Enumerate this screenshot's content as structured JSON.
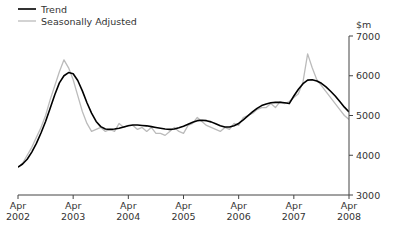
{
  "chart_data": {
    "type": "line",
    "y_label": "$m",
    "categories": [
      "Apr\n2002",
      null,
      null,
      null,
      null,
      null,
      null,
      null,
      null,
      null,
      null,
      null,
      "Apr\n2003",
      null,
      null,
      null,
      null,
      null,
      null,
      null,
      null,
      null,
      null,
      null,
      "Apr\n2004",
      null,
      null,
      null,
      null,
      null,
      null,
      null,
      null,
      null,
      null,
      null,
      "Apr\n2005",
      null,
      null,
      null,
      null,
      null,
      null,
      null,
      null,
      null,
      null,
      null,
      "Apr\n2006",
      null,
      null,
      null,
      null,
      null,
      null,
      null,
      null,
      null,
      null,
      null,
      "Apr\n2007",
      null,
      null,
      null,
      null,
      null,
      null,
      null,
      null,
      null,
      null,
      null,
      "Apr\n2008"
    ],
    "series": [
      {
        "name": "Trend",
        "color": "#000000",
        "values": [
          3700,
          3780,
          3900,
          4080,
          4300,
          4560,
          4850,
          5180,
          5520,
          5820,
          6000,
          6080,
          6050,
          5880,
          5620,
          5320,
          5060,
          4850,
          4720,
          4660,
          4650,
          4660,
          4680,
          4710,
          4740,
          4760,
          4760,
          4750,
          4740,
          4720,
          4700,
          4680,
          4660,
          4650,
          4660,
          4690,
          4730,
          4780,
          4830,
          4870,
          4880,
          4870,
          4840,
          4790,
          4740,
          4710,
          4710,
          4740,
          4800,
          4890,
          4990,
          5090,
          5180,
          5250,
          5290,
          5320,
          5330,
          5330,
          5320,
          5300,
          5490,
          5660,
          5800,
          5890,
          5900,
          5870,
          5810,
          5720,
          5610,
          5490,
          5350,
          5210,
          5090
        ]
      },
      {
        "name": "Seasonally Adjusted",
        "color": "#bbbbbb",
        "values": [
          3700,
          3800,
          4000,
          4200,
          4450,
          4700,
          5000,
          5400,
          5750,
          6100,
          6400,
          6200,
          5900,
          5500,
          5100,
          4800,
          4600,
          4650,
          4700,
          4600,
          4650,
          4600,
          4800,
          4700,
          4750,
          4750,
          4650,
          4700,
          4600,
          4700,
          4550,
          4550,
          4500,
          4600,
          4700,
          4600,
          4550,
          4750,
          4800,
          4950,
          4850,
          4750,
          4700,
          4650,
          4600,
          4700,
          4650,
          4800,
          4750,
          4950,
          5000,
          5050,
          5150,
          5200,
          5200,
          5300,
          5200,
          5350,
          5300,
          5350,
          5450,
          5550,
          5850,
          6550,
          6200,
          5900,
          5750,
          5600,
          5450,
          5300,
          5150,
          5000,
          4900
        ]
      }
    ],
    "ylim": [
      3000,
      7000
    ],
    "yticks": [
      3000,
      4000,
      5000,
      6000,
      7000
    ],
    "grid": false,
    "legend": "upper left"
  }
}
